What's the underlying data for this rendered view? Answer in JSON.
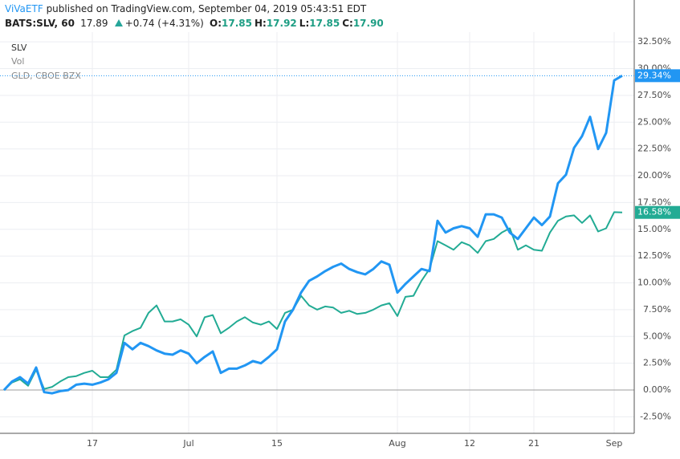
{
  "header": {
    "publisher": "ViVaETF",
    "published": "published on TradingView.com, September 04, 2019 05:43:51 EDT",
    "symbol": "BATS:SLV, 60",
    "price": "17.89",
    "change": "+0.74 (+4.31%)",
    "ohlc": [
      {
        "label": "O:",
        "value": "17.85"
      },
      {
        "label": "H:",
        "value": "17.92"
      },
      {
        "label": "L:",
        "value": "17.85"
      },
      {
        "label": "C:",
        "value": "17.90"
      }
    ]
  },
  "chart_data": {
    "type": "line",
    "volume_legend": "Vol",
    "categories": [
      null,
      null,
      null,
      null,
      null,
      null,
      null,
      null,
      null,
      null,
      null,
      "17",
      null,
      null,
      null,
      null,
      null,
      null,
      null,
      null,
      null,
      null,
      null,
      "Jul",
      null,
      null,
      null,
      null,
      null,
      null,
      null,
      null,
      null,
      null,
      "15",
      null,
      null,
      null,
      null,
      null,
      null,
      null,
      null,
      null,
      null,
      null,
      null,
      null,
      null,
      "Aug",
      null,
      null,
      null,
      null,
      null,
      null,
      null,
      null,
      "12",
      null,
      null,
      null,
      null,
      null,
      null,
      null,
      "21",
      null,
      null,
      null,
      null,
      null,
      null,
      null,
      null,
      null,
      "Sep",
      null
    ],
    "series": [
      {
        "name": "SLV",
        "color": "#2196f3",
        "values": [
          0.0,
          0.8,
          1.2,
          0.6,
          2.1,
          -0.2,
          -0.3,
          -0.1,
          0.0,
          0.5,
          0.6,
          0.5,
          0.7,
          1.0,
          1.6,
          4.4,
          3.8,
          4.4,
          4.1,
          3.7,
          3.4,
          3.3,
          3.7,
          3.4,
          2.5,
          3.1,
          3.6,
          1.6,
          2.0,
          2.0,
          2.3,
          2.7,
          2.5,
          3.1,
          3.8,
          6.4,
          7.5,
          9.1,
          10.2,
          10.6,
          11.1,
          11.5,
          11.8,
          11.3,
          11.0,
          10.8,
          11.3,
          12.0,
          11.7,
          9.1,
          9.9,
          10.6,
          11.3,
          11.1,
          15.8,
          14.7,
          15.1,
          15.3,
          15.1,
          14.3,
          16.4,
          16.4,
          16.1,
          14.7,
          14.1,
          15.1,
          16.1,
          15.4,
          16.2,
          19.3,
          20.1,
          22.6,
          23.7,
          25.5,
          22.5,
          24.0,
          28.9,
          29.34
        ],
        "value_labels": [
          null,
          null,
          null,
          null,
          null,
          null,
          null,
          null,
          null,
          null,
          null,
          null,
          null,
          null,
          null,
          null,
          null,
          null,
          null,
          null,
          null,
          null,
          null,
          null,
          null,
          null,
          null,
          null,
          null,
          null,
          null,
          null,
          null,
          null,
          null,
          null,
          null,
          null,
          null,
          null,
          null,
          null,
          null,
          null,
          null,
          null,
          null,
          null,
          null,
          null,
          null,
          null,
          null,
          null,
          null,
          null,
          null,
          null,
          null,
          null,
          null,
          null,
          null,
          null,
          null,
          null,
          null,
          null,
          null,
          null,
          null,
          null,
          null,
          null,
          null,
          null,
          null,
          "29.34%"
        ]
      },
      {
        "name": "GLD, CBOE BZX",
        "color": "#22ab94",
        "values": [
          0,
          0.7,
          1.0,
          0.4,
          1.9,
          0.1,
          0.3,
          0.8,
          1.2,
          1.3,
          1.6,
          1.8,
          1.2,
          1.2,
          1.9,
          5.1,
          5.5,
          5.8,
          7.2,
          7.9,
          6.4,
          6.4,
          6.6,
          6.1,
          5.0,
          6.8,
          7.0,
          5.3,
          5.8,
          6.4,
          6.8,
          6.3,
          6.1,
          6.4,
          5.7,
          7.2,
          7.5,
          8.8,
          7.9,
          7.5,
          7.8,
          7.7,
          7.2,
          7.4,
          7.1,
          7.2,
          7.5,
          7.9,
          8.1,
          6.9,
          8.7,
          8.8,
          10.2,
          11.3,
          13.9,
          13.5,
          13.1,
          13.8,
          13.5,
          12.8,
          13.9,
          14.1,
          14.7,
          15.1,
          13.1,
          13.5,
          13.1,
          13.0,
          14.7,
          15.8,
          16.2,
          16.3,
          15.6,
          16.3,
          14.8,
          15.1,
          16.6,
          16.58
        ],
        "value_labels": [
          null,
          null,
          null,
          null,
          null,
          null,
          null,
          null,
          null,
          null,
          null,
          null,
          null,
          null,
          null,
          null,
          null,
          null,
          null,
          null,
          null,
          null,
          null,
          null,
          null,
          null,
          null,
          null,
          null,
          null,
          null,
          null,
          null,
          null,
          null,
          null,
          null,
          null,
          null,
          null,
          null,
          null,
          null,
          null,
          null,
          null,
          null,
          null,
          null,
          null,
          null,
          null,
          null,
          null,
          null,
          null,
          null,
          null,
          null,
          null,
          null,
          null,
          null,
          null,
          null,
          null,
          null,
          null,
          null,
          null,
          null,
          null,
          null,
          null,
          null,
          null,
          null,
          "16.58%"
        ]
      }
    ],
    "ylim": [
      -4.04,
      33.41
    ],
    "yticks": [
      {
        "value": -2.5,
        "label": "-2.50%"
      },
      {
        "value": 0,
        "label": "0.00%"
      },
      {
        "value": 2.5,
        "label": "2.50%"
      },
      {
        "value": 5,
        "label": "5.00%"
      },
      {
        "value": 7.5,
        "label": "7.50%"
      },
      {
        "value": 10,
        "label": "10.00%"
      },
      {
        "value": 12.5,
        "label": "12.50%"
      },
      {
        "value": 15,
        "label": "15.00%"
      },
      {
        "value": 17.5,
        "label": "17.50%"
      },
      {
        "value": 20,
        "label": "20.00%"
      },
      {
        "value": 22.5,
        "label": "22.50%"
      },
      {
        "value": 25,
        "label": "25.00%"
      },
      {
        "value": 27.5,
        "label": "27.50%"
      },
      {
        "value": 30,
        "label": "30.00%"
      },
      {
        "value": 32.5,
        "label": "32.50%"
      }
    ],
    "grid": true,
    "axis_side": "right"
  }
}
